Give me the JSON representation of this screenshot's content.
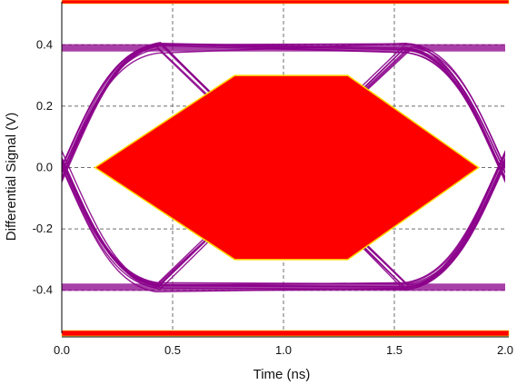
{
  "chart_data": {
    "type": "scatter",
    "subtype": "eye-diagram",
    "xlabel": "Time (ns)",
    "ylabel": "Differential Signal (V)",
    "xlim": [
      0.0,
      2.0
    ],
    "ylim": [
      -0.54,
      0.54
    ],
    "xticks": [
      0.0,
      0.5,
      1.0,
      1.5,
      2.0
    ],
    "xtick_labels": [
      "0.0",
      "0.5",
      "1.0",
      "1.5",
      "2.0"
    ],
    "yticks": [
      0.4,
      0.2,
      0.0,
      -0.2,
      -0.4
    ],
    "ytick_labels": [
      "0.4",
      "0.2",
      "0.0",
      "-0.2",
      "-0.4"
    ],
    "grid": true,
    "colors": {
      "eye_traces": "#8B008B",
      "mask": "#FF0000",
      "mask_outline": "#FFD700",
      "limit_bars": "#FF0000"
    },
    "mask_polygon": [
      [
        0.15,
        0.0
      ],
      [
        0.78,
        0.3
      ],
      [
        1.29,
        0.3
      ],
      [
        1.88,
        0.0
      ],
      [
        1.29,
        -0.3
      ],
      [
        0.78,
        -0.3
      ]
    ],
    "upper_limit_bar": 0.54,
    "lower_limit_bar": -0.54,
    "levels": {
      "high": 0.39,
      "low": -0.39
    },
    "crossings": [
      0.0,
      2.0
    ],
    "trace_count": 24
  }
}
